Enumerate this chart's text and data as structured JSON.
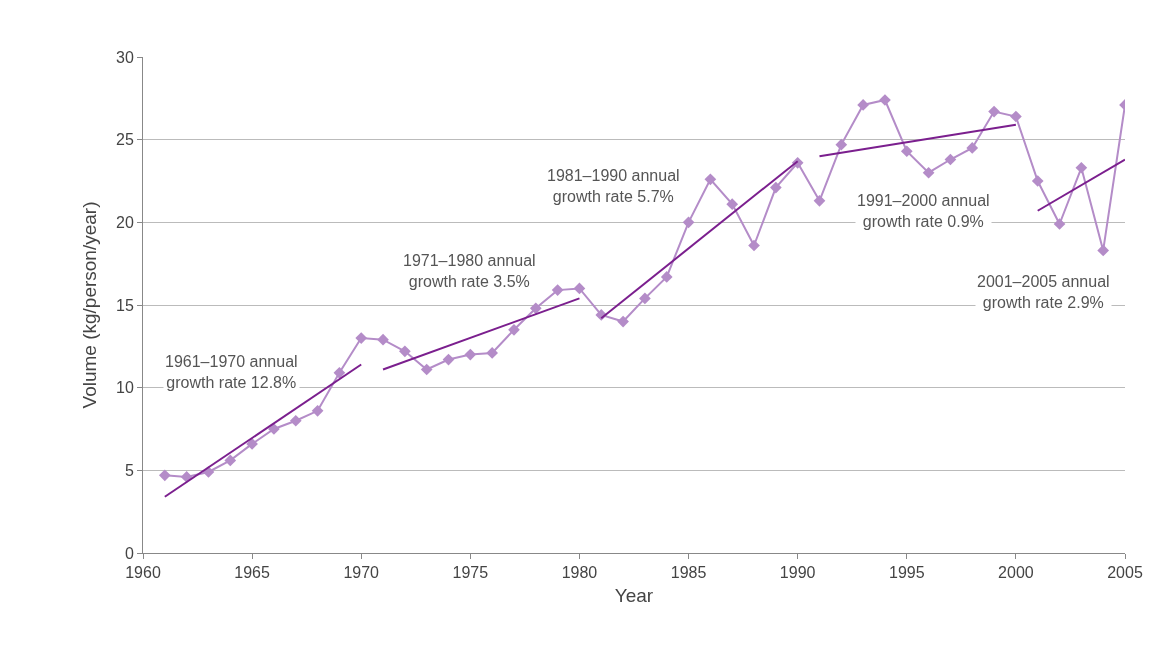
{
  "chart_data": {
    "type": "line",
    "xlabel": "Year",
    "ylabel": "Volume (kg/person/year)",
    "x": [
      1961,
      1962,
      1963,
      1964,
      1965,
      1966,
      1967,
      1968,
      1969,
      1970,
      1971,
      1972,
      1973,
      1974,
      1975,
      1976,
      1977,
      1978,
      1979,
      1980,
      1981,
      1982,
      1983,
      1984,
      1985,
      1986,
      1987,
      1988,
      1989,
      1990,
      1991,
      1992,
      1993,
      1994,
      1995,
      1996,
      1997,
      1998,
      1999,
      2000,
      2001,
      2002,
      2003,
      2004,
      2005
    ],
    "series": [
      {
        "color": "#b48cc8",
        "marker": "diamond",
        "values": [
          4.7,
          4.6,
          4.9,
          5.6,
          6.6,
          7.5,
          8.0,
          8.6,
          10.9,
          13.0,
          12.9,
          12.2,
          11.1,
          11.7,
          12.0,
          12.1,
          13.5,
          14.8,
          15.9,
          16.0,
          14.4,
          14.0,
          15.4,
          16.7,
          20.0,
          22.6,
          21.1,
          18.6,
          22.1,
          23.6,
          21.3,
          24.7,
          27.1,
          27.4,
          24.3,
          23.0,
          23.8,
          24.5,
          26.7,
          26.4,
          22.5,
          19.9,
          23.3,
          18.3,
          27.1
        ]
      },
      {
        "color": "#7b1f8e",
        "marker": "none",
        "x": [
          1961,
          1970
        ],
        "values": [
          3.4,
          11.4
        ]
      },
      {
        "color": "#7b1f8e",
        "marker": "none",
        "x": [
          1971,
          1980
        ],
        "values": [
          11.1,
          15.4
        ]
      },
      {
        "color": "#7b1f8e",
        "marker": "none",
        "x": [
          1981,
          1990
        ],
        "values": [
          14.2,
          23.7
        ]
      },
      {
        "color": "#7b1f8e",
        "marker": "none",
        "x": [
          1991,
          2000
        ],
        "values": [
          24.0,
          25.9
        ]
      },
      {
        "color": "#7b1f8e",
        "marker": "none",
        "x": [
          2001,
          2005
        ],
        "values": [
          20.7,
          23.8
        ]
      }
    ],
    "annotations": [
      "1961–1970 annual\ngrowth rate 12.8%",
      "1971–1980 annual\ngrowth rate 3.5%",
      "1981–1990 annual\ngrowth rate 5.7%",
      "1991–2000 annual\ngrowth rate 0.9%",
      "2001–2005 annual\ngrowth rate 2.9%"
    ],
    "xlim": [
      1960,
      2005
    ],
    "xticks": [
      1960,
      1965,
      1970,
      1975,
      1980,
      1985,
      1990,
      1995,
      2000,
      2005
    ],
    "ylim": [
      0,
      30
    ],
    "yticks": [
      0,
      5,
      10,
      15,
      20,
      25,
      30
    ],
    "grid": "y",
    "line_style": "solid"
  }
}
